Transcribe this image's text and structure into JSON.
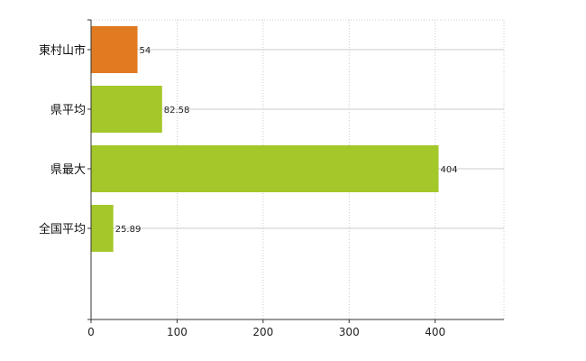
{
  "chart_data": {
    "type": "bar",
    "orientation": "horizontal",
    "categories": [
      "東村山市",
      "県平均",
      "県最大",
      "全国平均"
    ],
    "values": [
      54,
      82.58,
      404,
      25.89
    ],
    "value_labels": [
      "54",
      "82.58",
      "404",
      "25.89"
    ],
    "bar_colors": [
      "#e07b21",
      "#a4c72a",
      "#a4c72a",
      "#a4c72a"
    ],
    "xlim": [
      0,
      480
    ],
    "xticks": [
      0,
      100,
      200,
      300,
      400
    ],
    "xtick_labels": [
      "0",
      "100",
      "200",
      "300",
      "400"
    ],
    "grid": true,
    "grid_style": "dotted",
    "grid_color": "#cccccc",
    "axis_color": "#333333"
  }
}
